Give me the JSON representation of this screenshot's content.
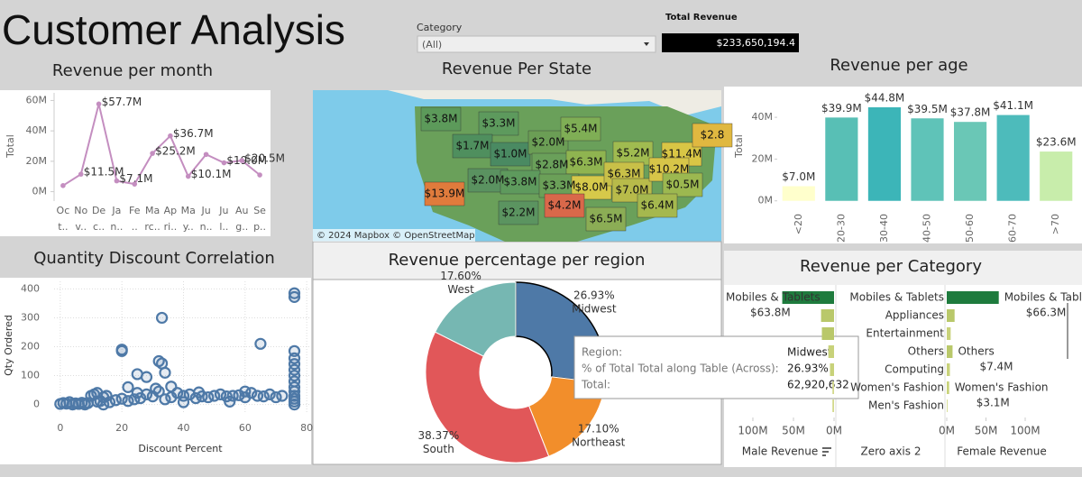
{
  "header": {
    "title": "Customer Analysis"
  },
  "filter": {
    "label": "Category",
    "value": "(All)"
  },
  "kpi": {
    "label": "Total Revenue",
    "value": "$233,650,194.4"
  },
  "chart_data": [
    {
      "type": "line",
      "title": "Revenue per month",
      "y_label": "Total",
      "categories": [
        [
          "Oc",
          "t.."
        ],
        [
          "No",
          "v.."
        ],
        [
          "De",
          "c.."
        ],
        [
          "Ja",
          "n.."
        ],
        [
          "Fe",
          ".."
        ],
        [
          "Ma",
          "rc.."
        ],
        [
          "Ap",
          "ri.."
        ],
        [
          "Ma",
          "y.."
        ],
        [
          "Ju",
          "n.."
        ],
        [
          "Ju",
          "l.."
        ],
        [
          "Au",
          "g.."
        ],
        [
          "Se",
          "p.."
        ]
      ],
      "values": [
        4,
        11.5,
        57.7,
        7.1,
        5,
        25.2,
        36.7,
        10.1,
        24.5,
        19.0,
        20.5,
        11
      ],
      "value_labels": [
        null,
        "$11.5M",
        "$57.7M",
        "$7.1M",
        null,
        "$25.2M",
        "$36.7M",
        "$10.1M",
        null,
        "$19.0M",
        "$20.5M",
        null
      ],
      "color": "#c48ec0",
      "ylim": [
        -5,
        65
      ],
      "yticks": [
        {
          "value": 0,
          "label": "0M"
        },
        {
          "value": 20,
          "label": "20M"
        },
        {
          "value": 40,
          "label": "40M"
        },
        {
          "value": 60,
          "label": "60M"
        }
      ]
    },
    {
      "type": "map",
      "title": "Revenue Per State",
      "attribution": "© 2024 Mapbox © OpenStreetMap",
      "values": [
        3.8,
        3.3,
        1.7,
        1.0,
        2.0,
        5.4,
        2.8,
        6.3,
        5.2,
        11.4,
        2.8,
        13.9,
        2.0,
        3.8,
        3.3,
        8.0,
        6.3,
        7.0,
        10.2,
        0.5,
        4.2,
        6.4,
        2.2,
        6.5
      ],
      "value_labels": [
        "$3.8M",
        "$3.3M",
        "$1.7M",
        "$1.0M",
        "$2.0M",
        "$5.4M",
        "$2.8M",
        "$6.3M",
        "$5.2M",
        "$11.4M",
        "$2.8",
        "$13.9M",
        "$2.0M",
        "$3.8M",
        "$3.3M",
        "$8.0M",
        "$6.3M",
        "$7.0M",
        "$10.2M",
        "$0.5M",
        "$4.2M",
        "$6.4M",
        "$2.2M",
        "$6.5M"
      ],
      "colors": [
        "#5c9a5a",
        "#5d9a5d",
        "#4f8f5e",
        "#4a8a62",
        "#6b9e55",
        "#7fae55",
        "#6aa05a",
        "#8fb450",
        "#a0bb50",
        "#d9c645",
        "#e0b840",
        "#e07b3c",
        "#5a9260",
        "#5e9a5d",
        "#6ba058",
        "#d6c94a",
        "#c8c048",
        "#b8bb4a",
        "#d7c548",
        "#9cb850",
        "#d9684a",
        "#a5b84e",
        "#5b9460",
        "#8bad55"
      ]
    },
    {
      "type": "bar",
      "title": "Revenue per age",
      "y_label": "Total",
      "categories": [
        "<20",
        "20-30",
        "30-40",
        "40-50",
        "50-60",
        "60-70",
        ">70"
      ],
      "values": [
        7.0,
        39.9,
        44.8,
        39.5,
        37.8,
        41.1,
        23.6
      ],
      "value_labels": [
        "$7.0M",
        "$39.9M",
        "$44.8M",
        "$39.5M",
        "$37.8M",
        "$41.1M",
        "$23.6M"
      ],
      "colors": [
        "#ffffcc",
        "#58bfb5",
        "#3cb5b8",
        "#5fc3b8",
        "#6ac7b6",
        "#4dbbbb",
        "#c8edab"
      ],
      "ylim": [
        -4,
        53
      ],
      "yticks": [
        {
          "value": 0,
          "label": "0M"
        },
        {
          "value": 20,
          "label": "20M"
        },
        {
          "value": 40,
          "label": "40M"
        }
      ]
    },
    {
      "type": "scatter",
      "title": "Quantity Discount Correlation",
      "x_label": "Discount Percent",
      "y_label": "Qty Ordered",
      "x": [
        0,
        1,
        2,
        3,
        4,
        5,
        6,
        7,
        8,
        9,
        10,
        11,
        12,
        13,
        14,
        15,
        16,
        18,
        20,
        22,
        24,
        25,
        26,
        28,
        30,
        32,
        34,
        36,
        38,
        40,
        42,
        44,
        46,
        48,
        50,
        52,
        54,
        56,
        58,
        60,
        62,
        64,
        66,
        68,
        70,
        72,
        76,
        76,
        76,
        76,
        20,
        20,
        33,
        32,
        33,
        25,
        34,
        28,
        36,
        31,
        65,
        76,
        76,
        76,
        76,
        76,
        76,
        76,
        76,
        76,
        76,
        22,
        12,
        45,
        60,
        4,
        8,
        14,
        40,
        55
      ],
      "values": [
        2,
        5,
        3,
        8,
        1,
        4,
        2,
        6,
        3,
        5,
        30,
        35,
        10,
        12,
        25,
        30,
        8,
        15,
        20,
        12,
        18,
        40,
        22,
        35,
        28,
        45,
        18,
        25,
        40,
        30,
        35,
        22,
        28,
        25,
        30,
        35,
        28,
        30,
        32,
        25,
        40,
        30,
        28,
        35,
        25,
        30,
        0,
        10,
        20,
        30,
        190,
        185,
        300,
        150,
        142,
        105,
        110,
        95,
        62,
        55,
        210,
        385,
        372,
        185,
        160,
        140,
        120,
        100,
        80,
        60,
        45,
        60,
        40,
        42,
        45,
        0,
        0,
        0,
        8,
        10
      ],
      "color": "#4e79a7",
      "xlim": [
        -2,
        82
      ],
      "ylim": [
        -20,
        420
      ],
      "xticks": [
        0,
        20,
        40,
        60,
        80
      ],
      "yticks": [
        0,
        100,
        200,
        300,
        400
      ],
      "grid": true
    },
    {
      "type": "donut",
      "title": "Revenue percentage per region",
      "categories": [
        "Midwest",
        "Northeast",
        "South",
        "West"
      ],
      "values": [
        26.93,
        17.1,
        38.37,
        17.6
      ],
      "value_labels": [
        "26.93%",
        "17.10%",
        "38.37%",
        "17.60%"
      ],
      "colors": [
        "#4e79a7",
        "#f28e2b",
        "#e15759",
        "#76b7b2"
      ],
      "tooltip": {
        "rows": [
          [
            "Region:",
            "Midwest"
          ],
          [
            "% of Total Total along Table (Across):",
            "26.93%"
          ],
          [
            "Total:",
            "62,920,632"
          ]
        ]
      }
    },
    {
      "type": "diverging_bar",
      "title": "Revenue per Category",
      "center_label": "Zero axis 2",
      "categories": [
        "Mobiles & Tablets",
        "Appliances",
        "Entertainment",
        "Others",
        "Computing",
        "Women's Fashion",
        "Men's Fashion"
      ],
      "series": [
        {
          "name": "Male Revenue",
          "values": [
            63.8,
            16,
            15,
            7,
            5,
            2,
            2
          ],
          "value_labels": [
            "$63.8M",
            null,
            null,
            null,
            null,
            null,
            null
          ],
          "colors": [
            "#1e7b3d",
            "#b9c86a",
            "#b9c86a",
            "#c8d27a",
            "#c8d27a",
            "#d3d98c",
            "#d3d98c"
          ],
          "xlim": [
            0,
            133.3
          ],
          "xticks": [
            {
              "value": 100,
              "label": "100M"
            },
            {
              "value": 50,
              "label": "50M"
            },
            {
              "value": 0,
              "label": "0M"
            }
          ]
        },
        {
          "name": "Female Revenue",
          "values": [
            66.3,
            10,
            5,
            7.4,
            4,
            3.1,
            1
          ],
          "value_labels": [
            "$66.3M",
            null,
            null,
            "$7.4M",
            null,
            "$3.1M",
            null
          ],
          "colors": [
            "#1e7b3d",
            "#b9c86a",
            "#c8d27a",
            "#b9c86a",
            "#c8d27a",
            "#c8d27a",
            "#d3d98c"
          ],
          "xlim": [
            0,
            149.4
          ],
          "xticks": [
            {
              "value": 0,
              "label": "0M"
            },
            {
              "value": 50,
              "label": "50M"
            },
            {
              "value": 100,
              "label": "100M"
            }
          ]
        }
      ]
    }
  ]
}
